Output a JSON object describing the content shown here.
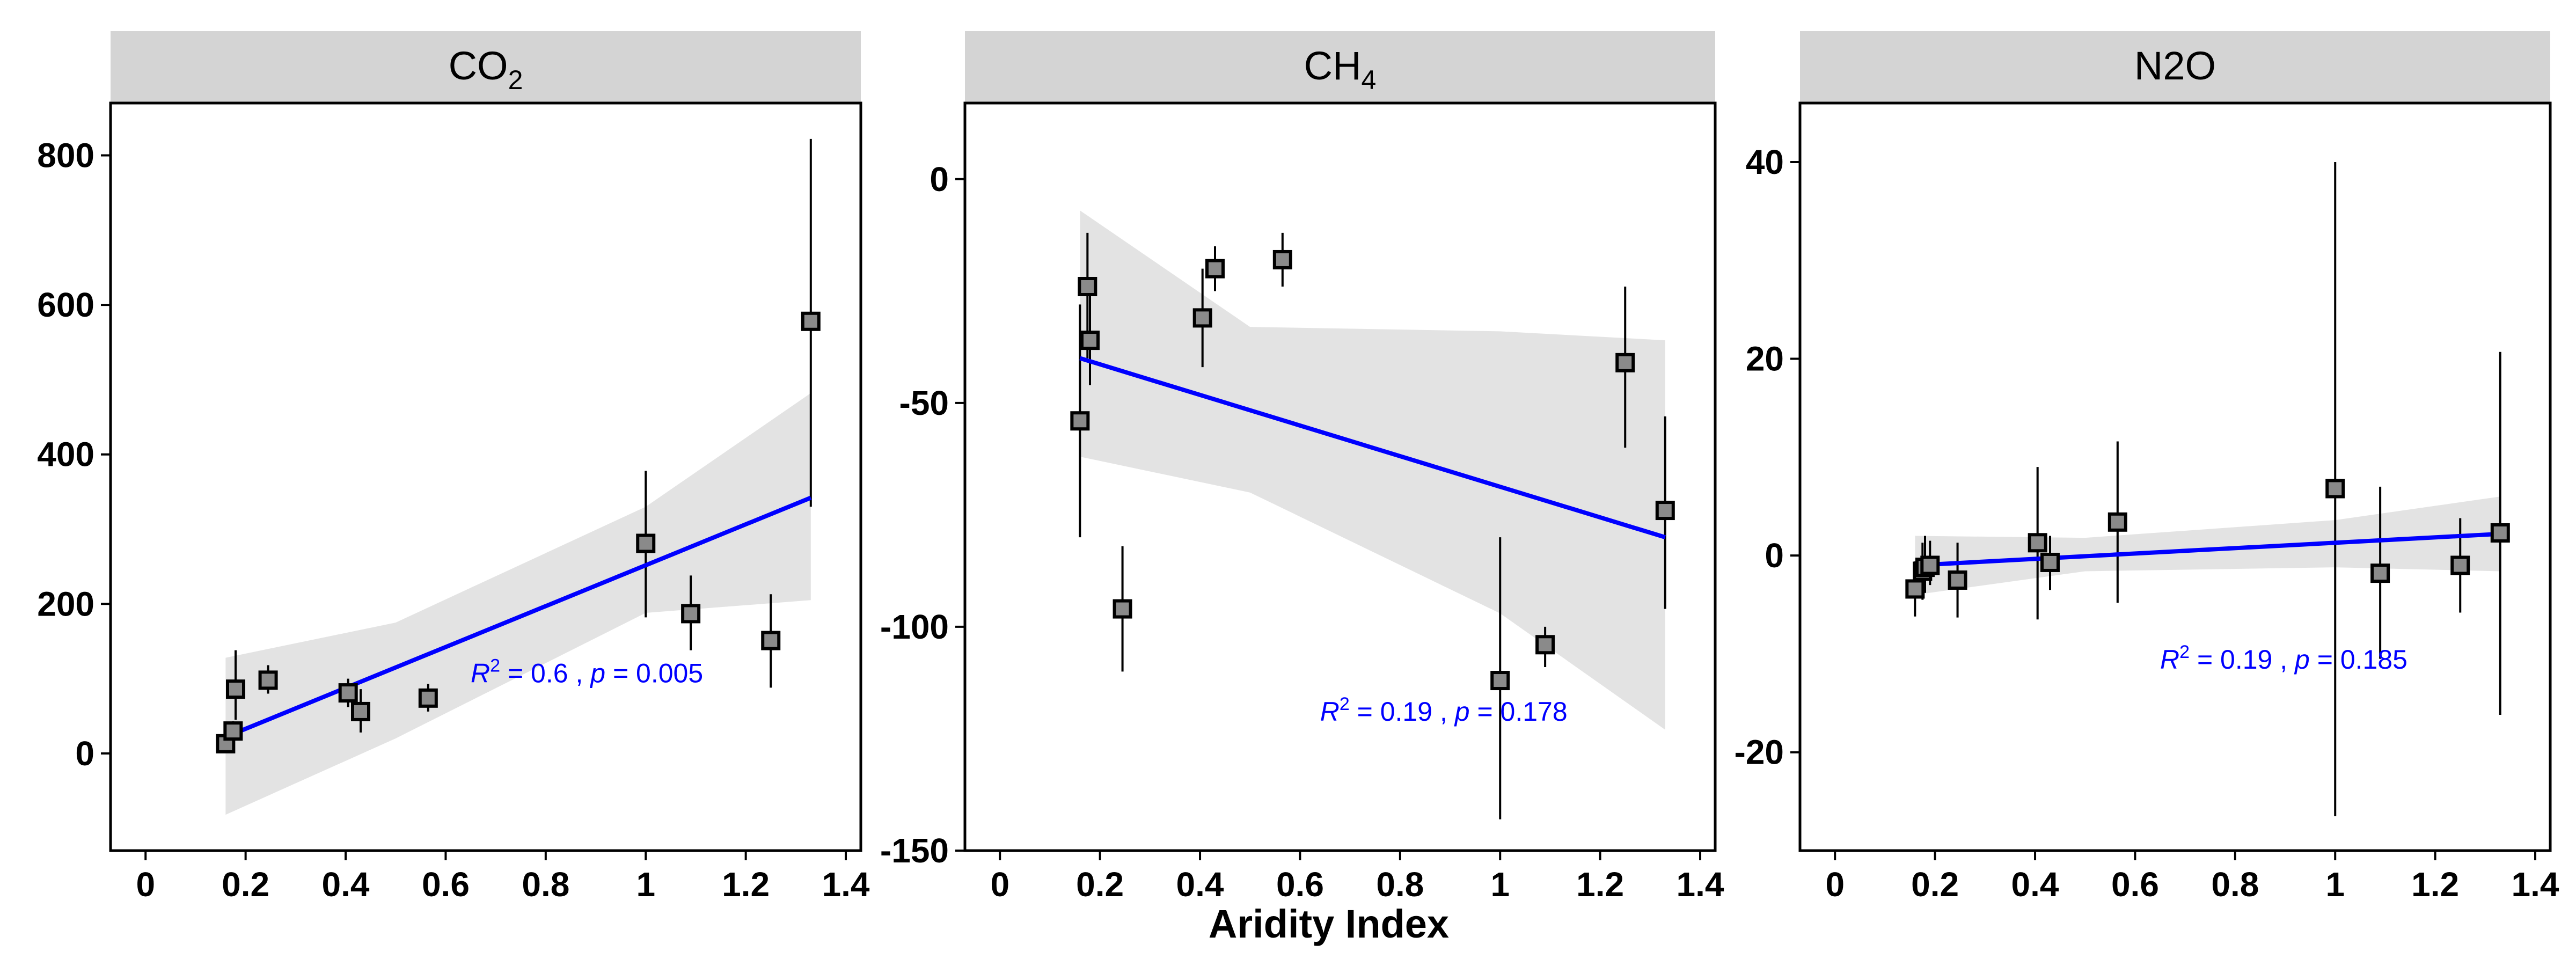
{
  "figure": {
    "xlabel": "Aridity Index",
    "colors": {
      "fit_line": "#0000ff",
      "ribbon": "#e3e3e3",
      "strip_bg": "#d4d4d4",
      "axis": "#000000",
      "annotation": "#0000ff"
    }
  },
  "chart_data": [
    {
      "type": "scatter",
      "panel_title": "CO2",
      "title_main": "CO",
      "title_sub": "2",
      "xlim": [
        -0.07,
        1.43
      ],
      "ylim": [
        -130,
        870
      ],
      "x_ticks": [
        "0",
        "0.2",
        "0.4",
        "0.6",
        "0.8",
        "1",
        "1.2",
        "1.4"
      ],
      "y_ticks": [
        "0",
        "200",
        "400",
        "600",
        "800"
      ],
      "points": [
        {
          "x": 0.16,
          "y": 13,
          "lo": 8,
          "hi": 18
        },
        {
          "x": 0.175,
          "y": 30,
          "lo": 18,
          "hi": 43
        },
        {
          "x": 0.18,
          "y": 86,
          "lo": 45,
          "hi": 138
        },
        {
          "x": 0.245,
          "y": 98,
          "lo": 80,
          "hi": 118
        },
        {
          "x": 0.405,
          "y": 81,
          "lo": 62,
          "hi": 100
        },
        {
          "x": 0.43,
          "y": 56,
          "lo": 28,
          "hi": 86
        },
        {
          "x": 0.565,
          "y": 74,
          "lo": 56,
          "hi": 93
        },
        {
          "x": 1.0,
          "y": 281,
          "lo": 182,
          "hi": 378
        },
        {
          "x": 1.09,
          "y": 187,
          "lo": 138,
          "hi": 238
        },
        {
          "x": 1.25,
          "y": 151,
          "lo": 88,
          "hi": 213
        },
        {
          "x": 1.33,
          "y": 578,
          "lo": 330,
          "hi": 822
        }
      ],
      "fit": {
        "x": [
          0.16,
          1.33
        ],
        "y": [
          22,
          342
        ]
      },
      "band": {
        "x": [
          0.16,
          0.5,
          1.0,
          1.33
        ],
        "upper": [
          128,
          175,
          330,
          482
        ],
        "lower": [
          -82,
          20,
          188,
          205
        ]
      },
      "annotation": {
        "x": 0.65,
        "y": 95,
        "r2_value": " = 0.6 , ",
        "p_value": " = 0.005"
      }
    },
    {
      "type": "scatter",
      "panel_title": "CH4",
      "title_main": "CH",
      "title_sub": "4",
      "xlim": [
        -0.07,
        1.43
      ],
      "ylim": [
        -150,
        17
      ],
      "x_ticks": [
        "0",
        "0.2",
        "0.4",
        "0.6",
        "0.8",
        "1",
        "1.2",
        "1.4"
      ],
      "y_ticks": [
        "0",
        "-50",
        "-100",
        "-150"
      ],
      "points": [
        {
          "x": 0.16,
          "y": -54,
          "lo": -80,
          "hi": -28
        },
        {
          "x": 0.175,
          "y": -24,
          "lo": -40,
          "hi": -12
        },
        {
          "x": 0.18,
          "y": -36,
          "lo": -46,
          "hi": -26
        },
        {
          "x": 0.245,
          "y": -96,
          "lo": -110,
          "hi": -82
        },
        {
          "x": 0.405,
          "y": -31,
          "lo": -42,
          "hi": -20
        },
        {
          "x": 0.43,
          "y": -20,
          "lo": -25,
          "hi": -15
        },
        {
          "x": 0.565,
          "y": -18,
          "lo": -24,
          "hi": -12
        },
        {
          "x": 1.0,
          "y": -112,
          "lo": -143,
          "hi": -80
        },
        {
          "x": 1.09,
          "y": -104,
          "lo": -109,
          "hi": -100
        },
        {
          "x": 1.25,
          "y": -41,
          "lo": -60,
          "hi": -24
        },
        {
          "x": 1.33,
          "y": -74,
          "lo": -96,
          "hi": -53
        }
      ],
      "fit": {
        "x": [
          0.16,
          1.33
        ],
        "y": [
          -40,
          -80
        ]
      },
      "band": {
        "x": [
          0.16,
          0.5,
          1.0,
          1.33
        ],
        "upper": [
          -7,
          -33,
          -34,
          -36
        ],
        "lower": [
          -62,
          -70,
          -97,
          -123
        ]
      },
      "annotation": {
        "x": 0.64,
        "y": -121,
        "r2_value": " = 0.19 , ",
        "p_value": " = 0.178"
      }
    },
    {
      "type": "scatter",
      "panel_title": "N2O",
      "title_main": "N2O",
      "title_sub": "",
      "xlim": [
        -0.07,
        1.43
      ],
      "ylim": [
        -30,
        46
      ],
      "x_ticks": [
        "0",
        "0.2",
        "0.4",
        "0.6",
        "0.8",
        "1",
        "1.2",
        "1.4"
      ],
      "y_ticks": [
        "40",
        "20",
        "0",
        "-20"
      ],
      "points": [
        {
          "x": 0.16,
          "y": -3.4,
          "lo": -6.2,
          "hi": -0.6
        },
        {
          "x": 0.175,
          "y": -1.6,
          "lo": -4.5,
          "hi": 1.3
        },
        {
          "x": 0.18,
          "y": -1.2,
          "lo": -3.8,
          "hi": 2.0
        },
        {
          "x": 0.19,
          "y": -1.0,
          "lo": -3.0,
          "hi": 1.5
        },
        {
          "x": 0.245,
          "y": -2.5,
          "lo": -6.3,
          "hi": 1.3
        },
        {
          "x": 0.405,
          "y": 1.3,
          "lo": -6.5,
          "hi": 9.0
        },
        {
          "x": 0.43,
          "y": -0.7,
          "lo": -3.5,
          "hi": 2.0
        },
        {
          "x": 0.565,
          "y": 3.4,
          "lo": -4.8,
          "hi": 11.6
        },
        {
          "x": 1.0,
          "y": 6.8,
          "lo": -26.5,
          "hi": 40.0
        },
        {
          "x": 1.09,
          "y": -1.8,
          "lo": -10.5,
          "hi": 7.0
        },
        {
          "x": 1.25,
          "y": -1.0,
          "lo": -5.8,
          "hi": 3.8
        },
        {
          "x": 1.33,
          "y": 2.3,
          "lo": -16.2,
          "hi": 20.7
        }
      ],
      "fit": {
        "x": [
          0.16,
          1.33
        ],
        "y": [
          -1.0,
          2.2
        ]
      },
      "band": {
        "x": [
          0.16,
          0.5,
          1.0,
          1.33
        ],
        "upper": [
          2.0,
          1.8,
          3.6,
          6.0
        ],
        "lower": [
          -4.0,
          -1.6,
          -1.2,
          -1.6
        ]
      },
      "annotation": {
        "x": 0.65,
        "y": -11.5,
        "r2_value": " = 0.19 , ",
        "p_value": " = 0.185"
      }
    }
  ]
}
